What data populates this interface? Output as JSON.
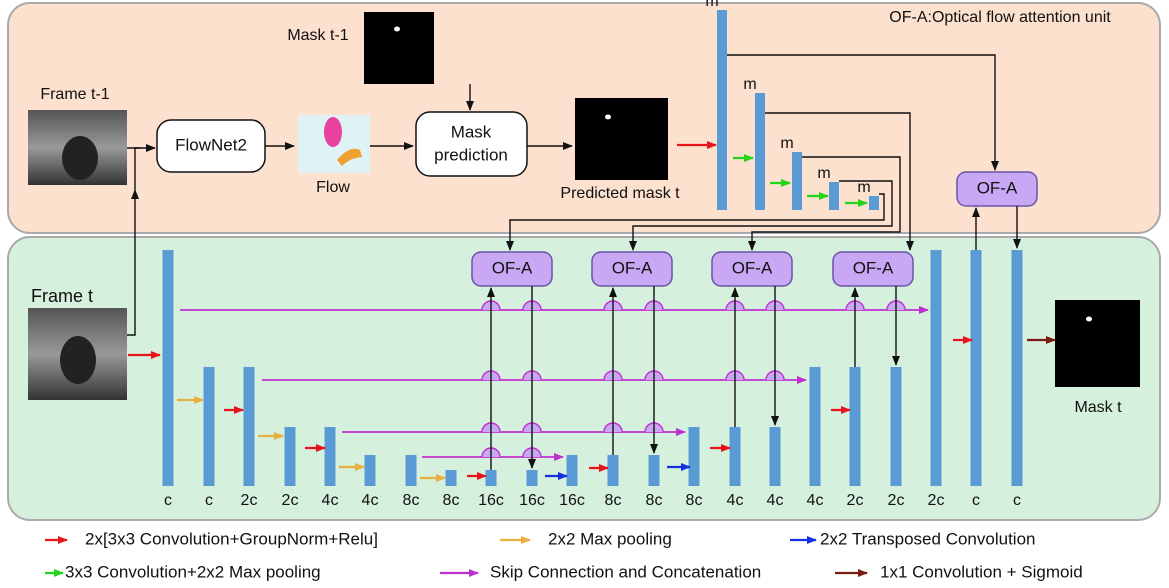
{
  "top": {
    "mask_prev_label": "Mask t-1",
    "ofa_note": "OF-A:Optical flow attention unit",
    "frame_prev_label": "Frame t-1",
    "flownet_box": "FlowNet2",
    "flow_label": "Flow",
    "mask_prediction_box": [
      "Mask",
      "prediction"
    ],
    "predicted_mask_label": "Predicted mask t",
    "bar_labels": [
      "m",
      "m",
      "m",
      "m",
      "m"
    ],
    "ofa_box": "OF-A"
  },
  "bottom": {
    "frame_label": "Frame t",
    "mask_label": "Mask t",
    "ofa_boxes": [
      "OF-A",
      "OF-A",
      "OF-A",
      "OF-A"
    ],
    "bar_labels": [
      "c",
      "c",
      "2c",
      "2c",
      "4c",
      "4c",
      "8c",
      "8c",
      "16c",
      "16c",
      "16c",
      "8c",
      "8c",
      "8c",
      "4c",
      "4c",
      "4c",
      "2c",
      "2c",
      "2c",
      "c",
      "c"
    ]
  },
  "legend": [
    "2x[3x3 Convolution+GroupNorm+Relu]",
    "2x2 Max pooling",
    "2x2 Transposed Convolution",
    "3x3 Convolution+2x2 Max pooling",
    "Skip Connection and Concatenation",
    "1x1 Convolution + Sigmoid"
  ]
}
